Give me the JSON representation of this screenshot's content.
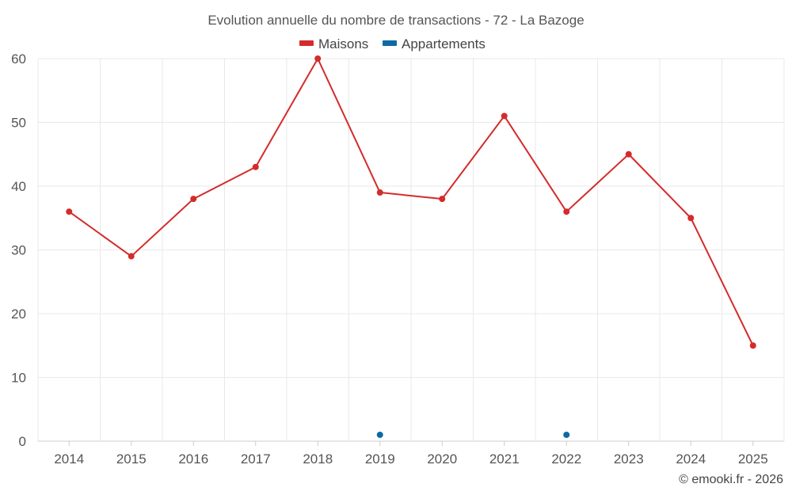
{
  "chart_data": {
    "type": "line",
    "title": "Evolution annuelle du nombre de transactions - 72 - La Bazoge",
    "categories": [
      "2014",
      "2015",
      "2016",
      "2017",
      "2018",
      "2019",
      "2020",
      "2021",
      "2022",
      "2023",
      "2024",
      "2025"
    ],
    "series": [
      {
        "name": "Maisons",
        "color": "#d42b2b",
        "values": [
          36,
          29,
          38,
          43,
          60,
          39,
          38,
          51,
          36,
          45,
          35,
          15
        ]
      },
      {
        "name": "Appartements",
        "color": "#0b6aa4",
        "values": [
          null,
          null,
          null,
          null,
          null,
          1,
          null,
          null,
          1,
          null,
          null,
          null
        ]
      }
    ],
    "ylim": [
      0,
      60
    ],
    "yticks": [
      0,
      10,
      20,
      30,
      40,
      50,
      60
    ],
    "xlabel": "",
    "ylabel": "",
    "grid": true,
    "legend_position": "top-center"
  },
  "credit": "© emooki.fr - 2026"
}
